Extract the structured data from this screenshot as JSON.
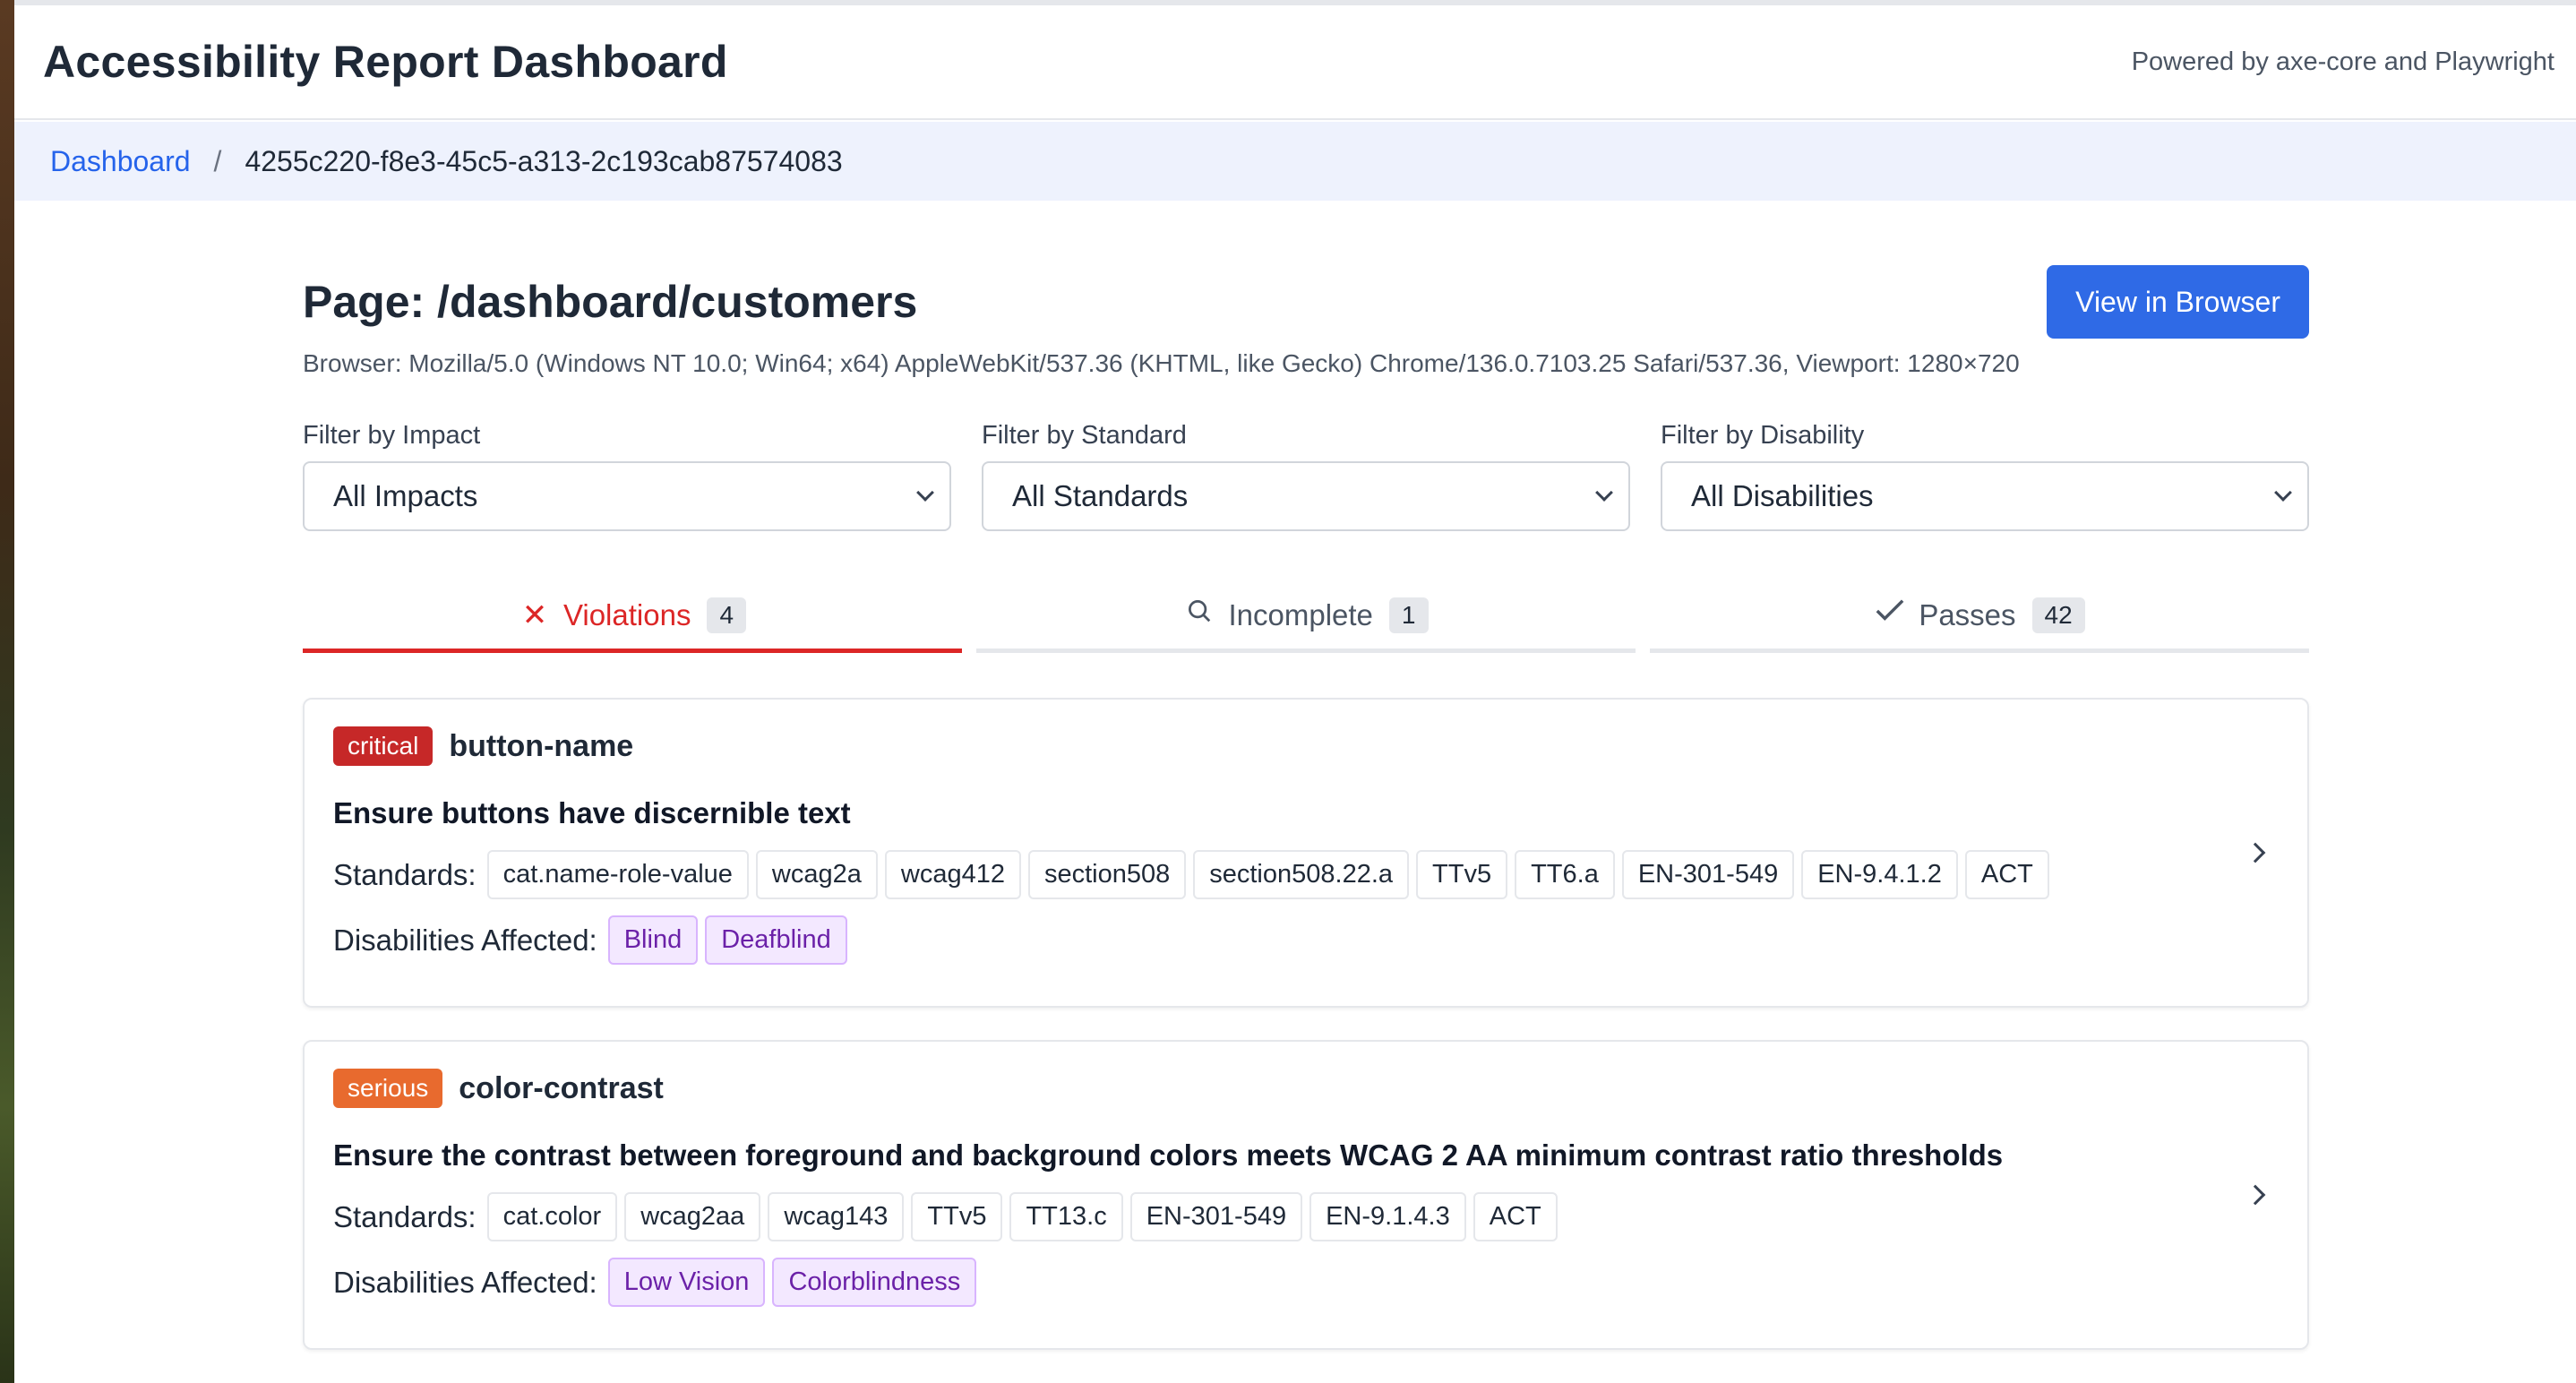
{
  "header": {
    "title": "Accessibility Report Dashboard",
    "powered_by": "Powered by axe-core and Playwright"
  },
  "breadcrumb": {
    "root": "Dashboard",
    "separator": "/",
    "current": "4255c220-f8e3-45c5-a313-2c193cab87574083"
  },
  "page": {
    "title": "Page: /dashboard/customers",
    "view_button": "View in Browser",
    "browser_info": "Browser: Mozilla/5.0 (Windows NT 10.0; Win64; x64) AppleWebKit/537.36 (KHTML, like Gecko) Chrome/136.0.7103.25 Safari/537.36, Viewport: 1280×720"
  },
  "filters": [
    {
      "label": "Filter by Impact",
      "value": "All Impacts"
    },
    {
      "label": "Filter by Standard",
      "value": "All Standards"
    },
    {
      "label": "Filter by Disability",
      "value": "All Disabilities"
    }
  ],
  "tabs": [
    {
      "label": "Violations",
      "count": "4",
      "icon": "x-icon",
      "active": true
    },
    {
      "label": "Incomplete",
      "count": "1",
      "icon": "search-icon",
      "active": false
    },
    {
      "label": "Passes",
      "count": "42",
      "icon": "check-icon",
      "active": false
    }
  ],
  "labels": {
    "standards": "Standards:",
    "disabilities": "Disabilities Affected:"
  },
  "violations": [
    {
      "impact": "critical",
      "rule_id": "button-name",
      "description": "Ensure buttons have discernible text",
      "standards": [
        "cat.name-role-value",
        "wcag2a",
        "wcag412",
        "section508",
        "section508.22.a",
        "TTv5",
        "TT6.a",
        "EN-301-549",
        "EN-9.4.1.2",
        "ACT"
      ],
      "disabilities": [
        "Blind",
        "Deafblind"
      ]
    },
    {
      "impact": "serious",
      "rule_id": "color-contrast",
      "description": "Ensure the contrast between foreground and background colors meets WCAG 2 AA minimum contrast ratio thresholds",
      "standards": [
        "cat.color",
        "wcag2aa",
        "wcag143",
        "TTv5",
        "TT13.c",
        "EN-301-549",
        "EN-9.1.4.3",
        "ACT"
      ],
      "disabilities": [
        "Low Vision",
        "Colorblindness"
      ]
    }
  ],
  "colors": {
    "accent": "#2f6ae6",
    "critical": "#c62828",
    "serious": "#e86a2e",
    "violation_tab": "#dc2626"
  }
}
